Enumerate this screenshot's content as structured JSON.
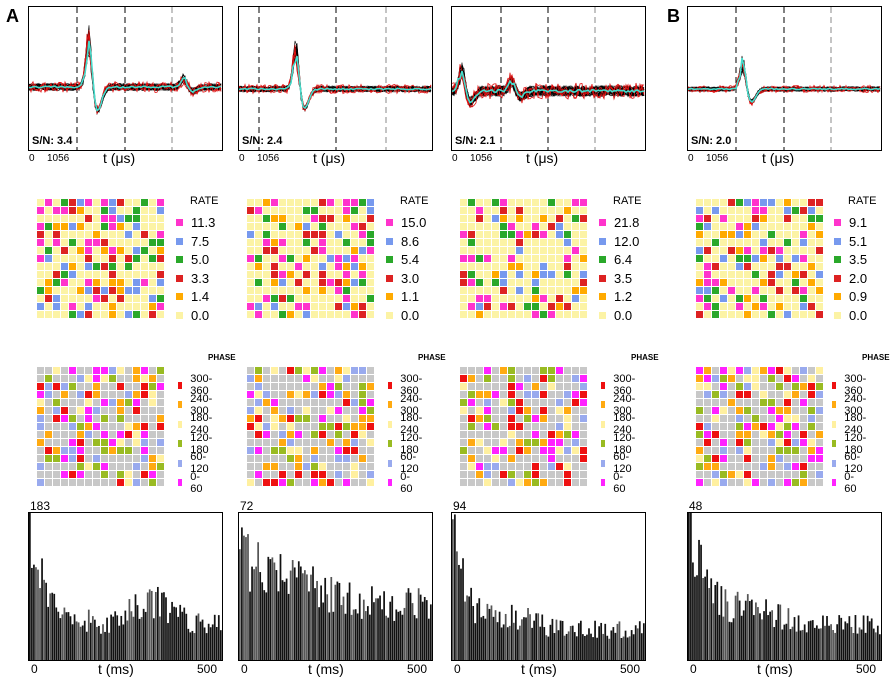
{
  "figure": {
    "panel_labels": [
      "A",
      "B"
    ],
    "time_us_label": "t (μs)",
    "time_ms_label": "t (ms)",
    "tick_zero": "0",
    "tick_1056": "1056",
    "tick_500": "500",
    "rate_title": "RATE",
    "phase_title": "PHASE"
  },
  "colors": {
    "magenta": "#ff33cc",
    "blue": "#7799ee",
    "green": "#2aa82a",
    "red": "#dd2222",
    "orange": "#ffaa00",
    "pale_yellow": "#fcf3a5",
    "phase_red": "#ee1111",
    "phase_orange": "#ffaa11",
    "phase_yellow": "#fff0a0",
    "phase_olive": "#99bb22",
    "phase_blue": "#99aaee",
    "phase_magenta": "#ff22ff",
    "phase_gray": "#c8c8c8",
    "trace": "#000000",
    "trace_red": "#dd1111",
    "mean_trace": "#44ddcc"
  },
  "phase_labels": [
    "300-360",
    "240-300",
    "180-240",
    "120-180",
    "60-120",
    "0- 60"
  ],
  "units": [
    {
      "sn_label": "S/N: 3.4",
      "rate_labels": [
        "11.3",
        "7.5",
        "5.0",
        "3.3",
        "1.4",
        "0.0"
      ],
      "hist_max_label": "183"
    },
    {
      "sn_label": "S/N: 2.4",
      "rate_labels": [
        "15.0",
        "8.6",
        "5.4",
        "3.0",
        "1.1",
        "0.0"
      ],
      "hist_max_label": "72"
    },
    {
      "sn_label": "S/N: 2.1",
      "rate_labels": [
        "21.8",
        "12.0",
        "6.4",
        "3.5",
        "1.2",
        "0.0"
      ],
      "hist_max_label": "94"
    },
    {
      "sn_label": "S/N: 2.0",
      "rate_labels": [
        "9.1",
        "5.1",
        "3.5",
        "2.0",
        "0.9",
        "0.0"
      ],
      "hist_max_label": "48"
    }
  ]
}
